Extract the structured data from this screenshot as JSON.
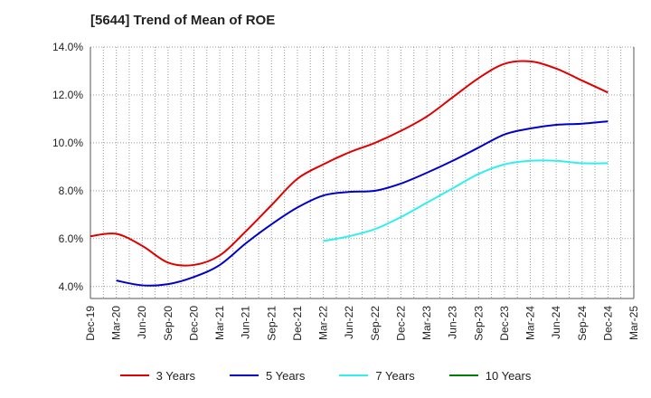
{
  "title": "[5644]  Trend of Mean of ROE",
  "colors": {
    "3 Years": "#e00000",
    "5 Years": "#0000cc",
    "7 Years": "#33eeee",
    "10 Years": "#008000",
    "grid": "#999999",
    "axis": "#555555"
  },
  "chart_data": {
    "type": "line",
    "title": "[5644]  Trend of Mean of ROE",
    "xlabel": "",
    "ylabel": "",
    "x": [
      "Dec-19",
      "Mar-20",
      "Jun-20",
      "Sep-20",
      "Dec-20",
      "Mar-21",
      "Jun-21",
      "Sep-21",
      "Dec-21",
      "Mar-22",
      "Jun-22",
      "Sep-22",
      "Dec-22",
      "Mar-23",
      "Jun-23",
      "Sep-23",
      "Dec-23",
      "Mar-24",
      "Jun-24",
      "Sep-24",
      "Dec-24",
      "Mar-25"
    ],
    "ylim": [
      3.5,
      14.0
    ],
    "yticks": [
      4.0,
      6.0,
      8.0,
      10.0,
      12.0,
      14.0
    ],
    "ytick_labels": [
      "4.0%",
      "6.0%",
      "8.0%",
      "10.0%",
      "12.0%",
      "14.0%"
    ],
    "grid": true,
    "legend_position": "bottom",
    "series": [
      {
        "name": "3 Years",
        "values": [
          6.1,
          6.2,
          5.7,
          5.0,
          4.9,
          5.3,
          6.3,
          7.4,
          8.5,
          9.1,
          9.6,
          10.0,
          10.5,
          11.1,
          11.9,
          12.7,
          13.3,
          13.4,
          13.1,
          12.6,
          12.1,
          null
        ]
      },
      {
        "name": "5 Years",
        "values": [
          null,
          4.25,
          4.05,
          4.1,
          4.4,
          4.9,
          5.8,
          6.6,
          7.3,
          7.8,
          7.95,
          8.0,
          8.3,
          8.75,
          9.25,
          9.8,
          10.35,
          10.6,
          10.75,
          10.8,
          10.9,
          null
        ]
      },
      {
        "name": "7 Years",
        "values": [
          null,
          null,
          null,
          null,
          null,
          null,
          null,
          null,
          null,
          5.9,
          6.1,
          6.4,
          6.9,
          7.5,
          8.1,
          8.7,
          9.1,
          9.25,
          9.25,
          9.15,
          9.15,
          null
        ]
      },
      {
        "name": "10 Years",
        "values": [
          null,
          null,
          null,
          null,
          null,
          null,
          null,
          null,
          null,
          null,
          null,
          null,
          null,
          null,
          null,
          null,
          null,
          null,
          null,
          null,
          null,
          null
        ]
      }
    ]
  }
}
